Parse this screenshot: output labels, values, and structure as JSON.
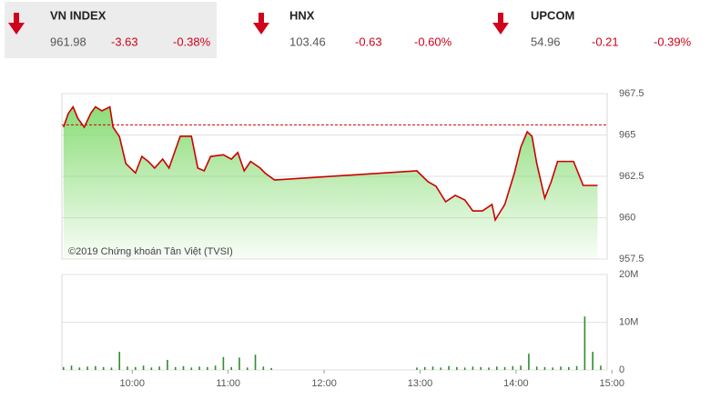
{
  "indices": [
    {
      "name": "VN INDEX",
      "value": "961.98",
      "change": "-3.63",
      "percent": "-0.38%"
    },
    {
      "name": "HNX",
      "value": "103.46",
      "change": "-0.63",
      "percent": "-0.60%"
    },
    {
      "name": "UPCOM",
      "value": "54.96",
      "change": "-0.21",
      "percent": "-0.39%"
    }
  ],
  "chart_data": [
    {
      "type": "line",
      "annotation": "©2019 Chứng khoán Tân Việt (TVSI)",
      "x": [
        557,
        560,
        563,
        566,
        570,
        574,
        577,
        581,
        586,
        588,
        592,
        596,
        602,
        606,
        610,
        614,
        619,
        623,
        627,
        630,
        637,
        641,
        645,
        649,
        657,
        662,
        666,
        670,
        674,
        680,
        683,
        689,
        778,
        785,
        790,
        796,
        802,
        808,
        813,
        819,
        825,
        827,
        833,
        839,
        843,
        847,
        850,
        853,
        858,
        862,
        866,
        876,
        882,
        891
      ],
      "series": [
        {
          "color": "#cc0000",
          "values": [
            965.47,
            966.3,
            966.7,
            966.0,
            965.47,
            966.3,
            966.7,
            966.46,
            966.7,
            965.47,
            964.9,
            963.27,
            962.7,
            963.7,
            963.4,
            963.0,
            963.54,
            963.0,
            964.1,
            964.92,
            964.92,
            963.0,
            962.83,
            963.7,
            963.8,
            963.54,
            963.94,
            962.83,
            963.4,
            963.0,
            962.7,
            962.28,
            962.83,
            962.17,
            961.9,
            960.96,
            961.35,
            961.07,
            960.41,
            960.41,
            960.8,
            959.86,
            960.8,
            962.7,
            964.26,
            965.19,
            964.92,
            963.27,
            961.18,
            962.17,
            963.4,
            963.4,
            961.95,
            961.95
          ]
        }
      ],
      "reference": 965.61,
      "reference_color": "#cc0000",
      "area_color": "#7ed96a",
      "xlim": [
        556,
        897
      ],
      "ylim": [
        957.5,
        967.5
      ],
      "yticks": [
        957.5,
        960,
        962.5,
        965,
        967.5
      ],
      "grid": true
    },
    {
      "type": "bar",
      "x": [
        557,
        562,
        567,
        572,
        577,
        582,
        587,
        592,
        597,
        602,
        607,
        612,
        617,
        622,
        627,
        632,
        637,
        642,
        647,
        652,
        657,
        662,
        667,
        672,
        677,
        682,
        687,
        778,
        783,
        788,
        793,
        798,
        803,
        808,
        813,
        818,
        823,
        828,
        833,
        838,
        843,
        848,
        853,
        858,
        863,
        868,
        873,
        878,
        883,
        888,
        893
      ],
      "values": [
        600000,
        900000,
        500000,
        700000,
        800000,
        600000,
        500000,
        3800000,
        700000,
        600000,
        900000,
        500000,
        700000,
        2100000,
        600000,
        800000,
        500000,
        700000,
        600000,
        900000,
        2700000,
        600000,
        2600000,
        500000,
        3200000,
        700000,
        400000,
        500000,
        600000,
        700000,
        500000,
        800000,
        600000,
        500000,
        700000,
        600000,
        500000,
        700000,
        600000,
        800000,
        900000,
        3400000,
        700000,
        600000,
        500000,
        700000,
        600000,
        800000,
        11200000,
        3800000,
        900000
      ],
      "color": "#2e8b2e",
      "xlim": [
        556,
        897
      ],
      "ylim": [
        0,
        20000000
      ],
      "yticks": [
        0,
        {
          "value": 10000000,
          "label": "10M"
        },
        {
          "value": 20000000,
          "label": "20M"
        }
      ],
      "xticks": [
        {
          "value": 600,
          "label": "10:00"
        },
        {
          "value": 660,
          "label": "11:00"
        },
        {
          "value": 720,
          "label": "12:00"
        },
        {
          "value": 780,
          "label": "13:00"
        },
        {
          "value": 840,
          "label": "14:00"
        },
        {
          "value": 900,
          "label": "15:00"
        }
      ],
      "grid": true
    }
  ]
}
